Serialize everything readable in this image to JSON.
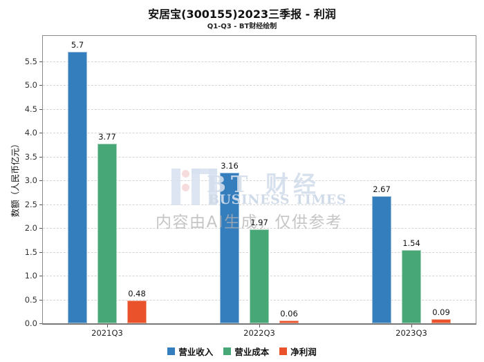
{
  "watermark": {
    "brand_cn": "BT 财经",
    "brand_en": "BUSINESS TIMES",
    "disclaimer": "内容由AI生成，仅供参考"
  },
  "chart_data": {
    "type": "bar",
    "title": "安居宝(300155)2023三季报 - 利润",
    "subtitle": "Q1-Q3 - BT财经绘制",
    "categories": [
      "2021Q3",
      "2022Q3",
      "2023Q3"
    ],
    "series": [
      {
        "name": "营业收入",
        "color": "#347ebd",
        "values": [
          5.7,
          3.16,
          2.67
        ]
      },
      {
        "name": "营业成本",
        "color": "#48a776",
        "values": [
          3.77,
          1.97,
          1.54
        ]
      },
      {
        "name": "净利润",
        "color": "#e9522a",
        "values": [
          0.48,
          0.06,
          0.09
        ]
      }
    ],
    "xlabel": "",
    "ylabel": "数额（人民币亿元）",
    "ylim": [
      0,
      6.0
    ],
    "yticks": [
      "0.0",
      "0.5",
      "1.0",
      "1.5",
      "2.0",
      "2.5",
      "3.0",
      "3.5",
      "4.0",
      "4.5",
      "5.0",
      "5.5"
    ],
    "grid": "horizontal-dashed",
    "legend_position": "bottom"
  }
}
